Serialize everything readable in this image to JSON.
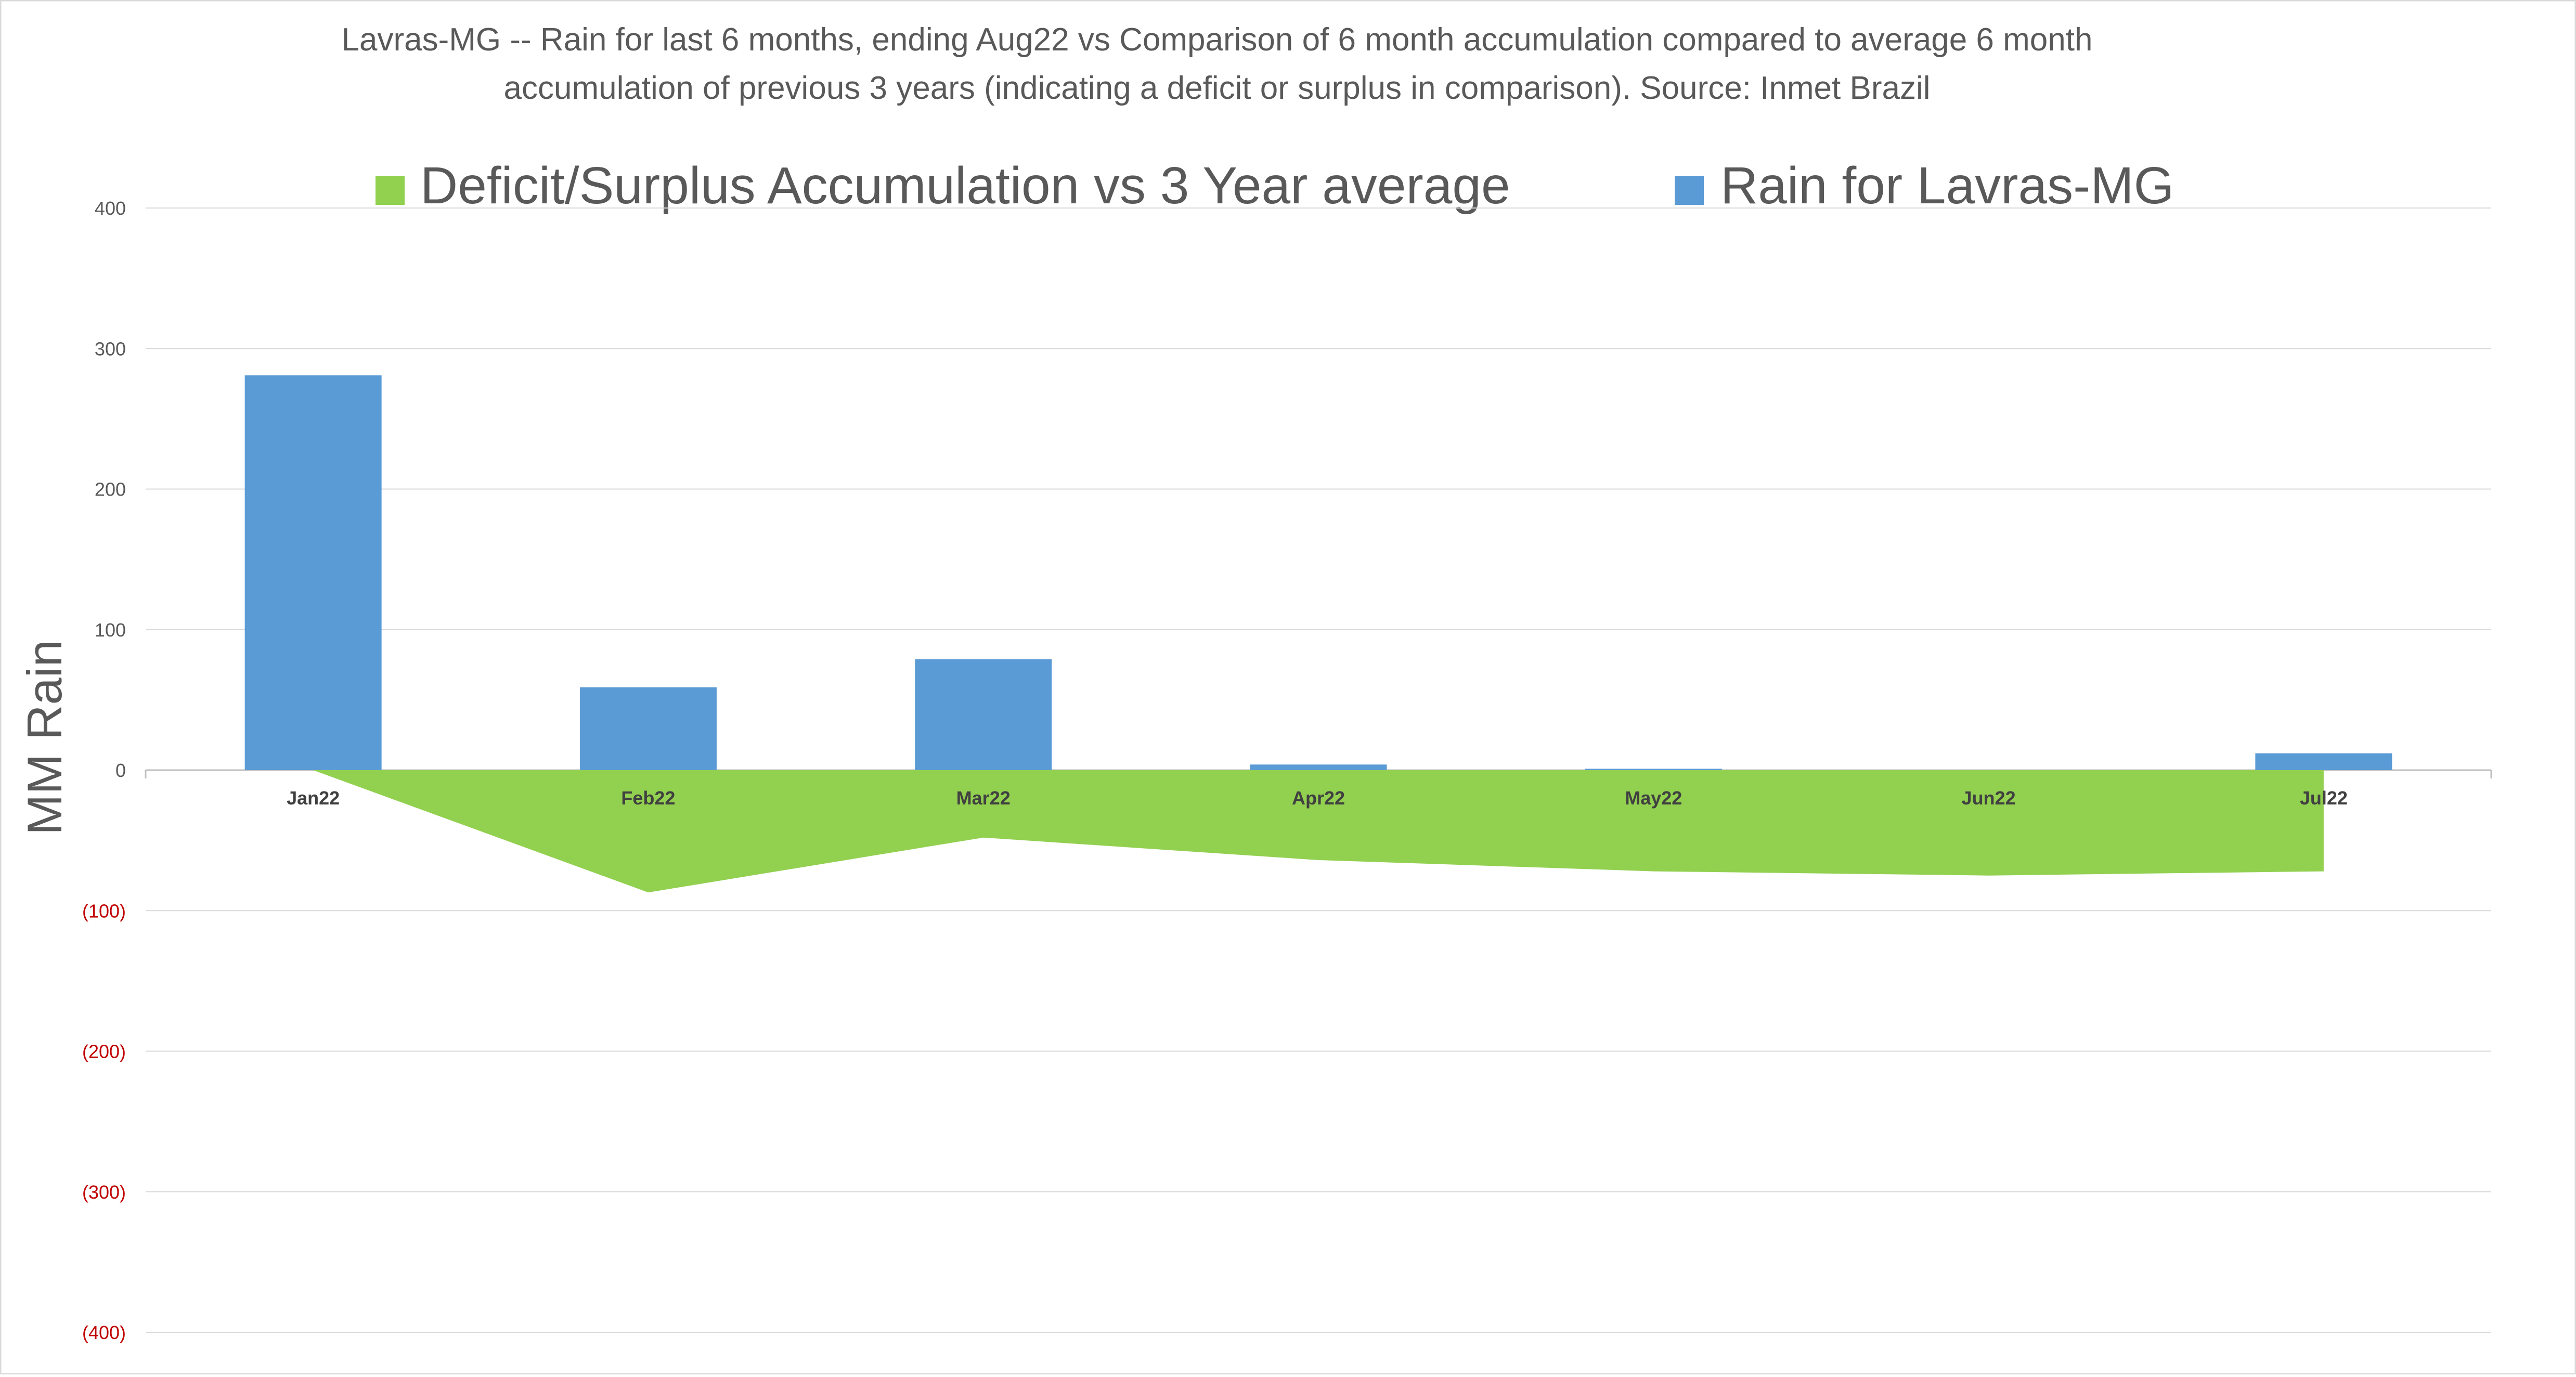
{
  "chart_data": {
    "type": "bar",
    "title_line1": "Lavras-MG -- Rain for last 6 months, ending Aug22  vs Comparison of 6 month accumulation compared to average 6 month",
    "title_line2": "accumulation of previous 3 years  (indicating a deficit or surplus in comparison). Source: Inmet Brazil",
    "ylabel": "MM Rain",
    "xlabel": "",
    "ylim": [
      -400,
      400
    ],
    "yticks": [
      400,
      300,
      200,
      100,
      0,
      -100,
      -200,
      -300,
      -400
    ],
    "ytick_labels": [
      "400",
      "300",
      "200",
      "100",
      "0",
      "(100)",
      "(200)",
      "(300)",
      "(400)"
    ],
    "negative_tick_color": "#c00000",
    "grid": true,
    "legend_position": "top",
    "categories": [
      "Jan22",
      "Feb22",
      "Mar22",
      "Apr22",
      "May22",
      "Jun22",
      "Jul22"
    ],
    "series": [
      {
        "name": "Deficit/Surplus Accumulation vs 3 Year average",
        "type": "area",
        "color": "#92d050",
        "values": [
          0,
          -87,
          -48,
          -64,
          -72,
          -75,
          -72
        ]
      },
      {
        "name": "Rain for Lavras-MG",
        "type": "bar",
        "color": "#5b9bd5",
        "values": [
          281,
          59,
          79,
          4,
          1,
          0,
          12
        ]
      }
    ]
  }
}
